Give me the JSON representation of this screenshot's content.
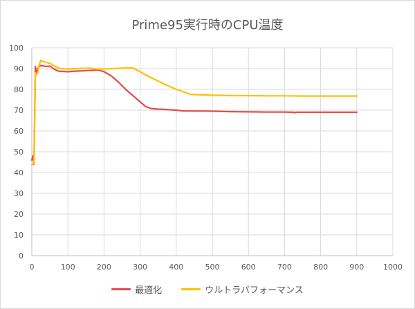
{
  "chart_data": {
    "type": "line",
    "title": "Prime95実行時のCPU温度",
    "xlabel": "",
    "ylabel": "",
    "xlim": [
      0,
      1000
    ],
    "ylim": [
      0,
      100
    ],
    "x_ticks": [
      0,
      100,
      200,
      300,
      400,
      500,
      600,
      700,
      800,
      900,
      1000
    ],
    "y_ticks": [
      0,
      10,
      20,
      30,
      40,
      50,
      60,
      70,
      80,
      90,
      100
    ],
    "grid": true,
    "legend_position": "bottom",
    "series": [
      {
        "name": "最適化",
        "color": "#e84a4a",
        "x": [
          0,
          3,
          6,
          10,
          13,
          17,
          20,
          25,
          30,
          40,
          50,
          60,
          70,
          80,
          100,
          120,
          150,
          170,
          185,
          200,
          220,
          240,
          260,
          280,
          300,
          315,
          330,
          350,
          380,
          400,
          420,
          450,
          500,
          550,
          600,
          650,
          700,
          725,
          728,
          731,
          750,
          800,
          850,
          900
        ],
        "y": [
          46,
          48,
          44,
          91,
          88,
          90,
          91,
          91.5,
          91.3,
          91,
          91.2,
          90,
          89,
          88.7,
          88.5,
          88.8,
          89,
          89.2,
          89.3,
          88.5,
          86.5,
          83.5,
          80,
          77,
          74,
          71.8,
          70.8,
          70.5,
          70.2,
          70,
          69.6,
          69.6,
          69.5,
          69.3,
          69.2,
          69.1,
          69.1,
          69,
          68.7,
          69,
          69,
          69,
          69,
          69
        ]
      },
      {
        "name": "ウルトラパフォーマンス",
        "color": "#ffc000",
        "x": [
          0,
          3,
          6,
          10,
          13,
          17,
          20,
          25,
          30,
          40,
          50,
          60,
          70,
          80,
          100,
          130,
          160,
          170,
          180,
          200,
          230,
          250,
          280,
          300,
          320,
          350,
          380,
          400,
          420,
          440,
          450,
          500,
          550,
          600,
          650,
          700,
          750,
          800,
          850,
          900
        ],
        "y": [
          43.5,
          44,
          44.5,
          88,
          87,
          88.5,
          91.5,
          94,
          93.5,
          93,
          92.5,
          91.5,
          90.5,
          90,
          89.8,
          90,
          90.2,
          90,
          89.8,
          89.8,
          90,
          90.2,
          90.3,
          88.5,
          86.5,
          84,
          81.5,
          80,
          78.8,
          77.6,
          77.5,
          77.2,
          77,
          77,
          76.9,
          76.9,
          76.8,
          76.8,
          76.8,
          76.8
        ]
      }
    ]
  }
}
